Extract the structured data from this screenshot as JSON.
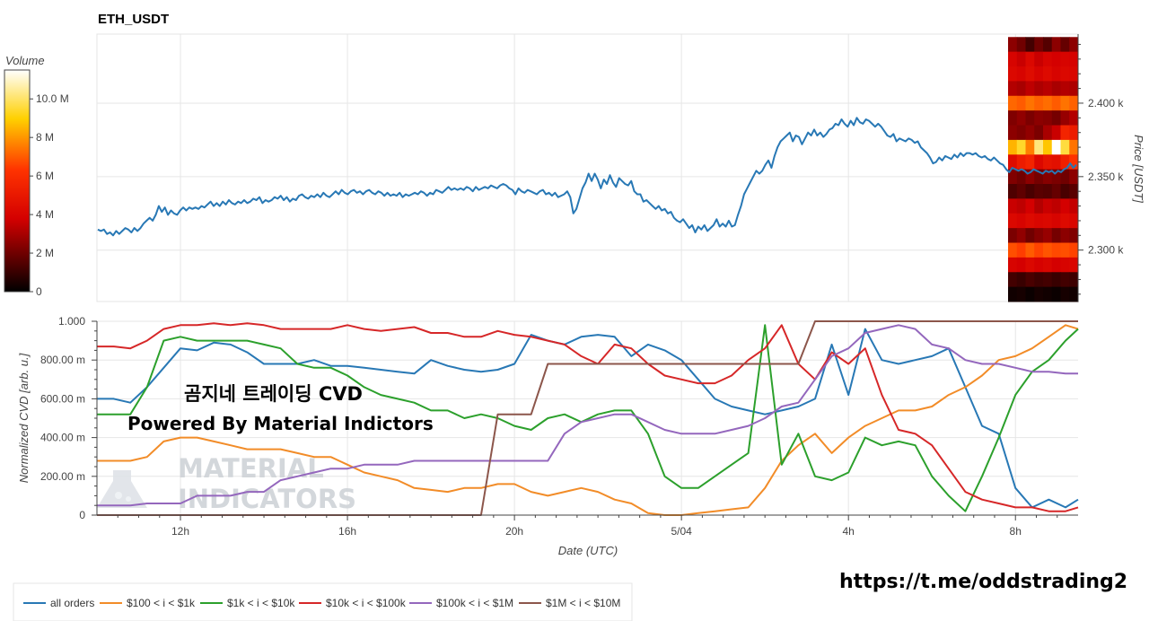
{
  "chart_data": {
    "type": "line",
    "title": "ETH_USDT",
    "price_panel": {
      "ylabel": "Price [USDT]",
      "yticks": [
        "2.300 k",
        "2.350 k",
        "2.400 k"
      ],
      "ytick_values": [
        2300,
        2350,
        2400
      ],
      "ylim": [
        2265,
        2447
      ],
      "series": {
        "name": "",
        "color": "#2878b5",
        "values": [
          2314,
          2313,
          2314,
          2311,
          2312,
          2310,
          2313,
          2311,
          2313,
          2315,
          2314,
          2312,
          2315,
          2313,
          2315,
          2318,
          2320,
          2322,
          2320,
          2324,
          2330,
          2326,
          2329,
          2324,
          2327,
          2325,
          2324,
          2327,
          2329,
          2327,
          2329,
          2328,
          2329,
          2328,
          2330,
          2329,
          2331,
          2333,
          2330,
          2332,
          2330,
          2333,
          2331,
          2334,
          2332,
          2331,
          2333,
          2332,
          2334,
          2332,
          2333,
          2335,
          2334,
          2336,
          2332,
          2334,
          2333,
          2334,
          2336,
          2335,
          2337,
          2334,
          2336,
          2333,
          2335,
          2334,
          2337,
          2338,
          2336,
          2335,
          2337,
          2336,
          2338,
          2336,
          2339,
          2337,
          2336,
          2338,
          2340,
          2338,
          2341,
          2339,
          2338,
          2340,
          2341,
          2339,
          2340,
          2338,
          2340,
          2341,
          2339,
          2338,
          2340,
          2339,
          2337,
          2339,
          2337,
          2338,
          2337,
          2339,
          2336,
          2338,
          2337,
          2338,
          2339,
          2338,
          2340,
          2339,
          2337,
          2339,
          2338,
          2341,
          2340,
          2339,
          2341,
          2343,
          2341,
          2342,
          2341,
          2342,
          2341,
          2343,
          2342,
          2340,
          2343,
          2341,
          2342,
          2343,
          2342,
          2344,
          2343,
          2342,
          2344,
          2345,
          2344,
          2342,
          2341,
          2338,
          2342,
          2340,
          2339,
          2341,
          2340,
          2339,
          2338,
          2340,
          2341,
          2338,
          2339,
          2337,
          2339,
          2336,
          2337,
          2338,
          2340,
          2336,
          2325,
          2328,
          2335,
          2342,
          2346,
          2352,
          2347,
          2352,
          2348,
          2342,
          2348,
          2345,
          2351,
          2346,
          2343,
          2349,
          2347,
          2345,
          2344,
          2347,
          2340,
          2338,
          2338,
          2333,
          2334,
          2332,
          2330,
          2328,
          2330,
          2327,
          2328,
          2325,
          2326,
          2322,
          2320,
          2319,
          2321,
          2318,
          2315,
          2317,
          2312,
          2316,
          2314,
          2317,
          2313,
          2315,
          2317,
          2321,
          2316,
          2318,
          2316,
          2320,
          2316,
          2317,
          2324,
          2330,
          2338,
          2342,
          2346,
          2350,
          2354,
          2352,
          2354,
          2358,
          2361,
          2356,
          2364,
          2370,
          2374,
          2376,
          2378,
          2380,
          2374,
          2378,
          2377,
          2372,
          2376,
          2380,
          2378,
          2382,
          2378,
          2380,
          2377,
          2379,
          2382,
          2383,
          2386,
          2385,
          2389,
          2386,
          2384,
          2388,
          2385,
          2390,
          2387,
          2386,
          2389,
          2388,
          2386,
          2384,
          2386,
          2384,
          2381,
          2378,
          2377,
          2379,
          2374,
          2376,
          2375,
          2374,
          2376,
          2375,
          2373,
          2374,
          2370,
          2368,
          2366,
          2363,
          2359,
          2360,
          2363,
          2361,
          2364,
          2363,
          2362,
          2365,
          2363,
          2366,
          2364,
          2366,
          2366,
          2365,
          2366,
          2364,
          2363,
          2364,
          2362,
          2361,
          2363,
          2361,
          2359,
          2358,
          2355,
          2353,
          2356,
          2355,
          2354,
          2355,
          2354,
          2352,
          2353,
          2355,
          2354,
          2353,
          2352,
          2354,
          2353,
          2354,
          2352,
          2354,
          2353,
          2355,
          2356,
          2359,
          2356,
          2358
        ]
      }
    },
    "volume_profile": {
      "colorbar_label": "Volume",
      "colorbar_ticks": [
        "0",
        "2 M",
        "4 M",
        "6 M",
        "8 M",
        "10.0 M"
      ],
      "colorbar_values": [
        0,
        2,
        4,
        6,
        8,
        10
      ],
      "cmax": 11.5,
      "price_bins": [
        2440,
        2430,
        2420,
        2410,
        2400,
        2390,
        2380,
        2370,
        2360,
        2350,
        2340,
        2330,
        2320,
        2310,
        2300,
        2290,
        2280,
        2270
      ],
      "columns": 8,
      "values": [
        [
          2.5,
          2.0,
          1.2,
          2.0,
          1.5,
          2.5,
          1.8,
          2.5
        ],
        [
          4.0,
          3.6,
          4.2,
          3.6,
          4.0,
          3.8,
          4.0,
          3.9
        ],
        [
          4.2,
          4.0,
          4.4,
          4.0,
          4.3,
          4.0,
          4.2,
          4.1
        ],
        [
          3.2,
          3.0,
          3.4,
          3.1,
          3.3,
          3.0,
          3.2,
          3.1
        ],
        [
          7.2,
          7.0,
          7.4,
          7.1,
          7.3,
          7.0,
          7.4,
          7.1
        ],
        [
          2.3,
          2.6,
          2.2,
          2.5,
          2.4,
          2.1,
          2.7,
          3.2
        ],
        [
          2.5,
          2.3,
          2.6,
          2.2,
          3.0,
          3.6,
          5.6,
          5.2
        ],
        [
          8.5,
          9.4,
          7.6,
          10.2,
          8.8,
          11.5,
          9.6,
          7.4
        ],
        [
          4.4,
          5.2,
          5.6,
          4.2,
          4.8,
          4.6,
          5.4,
          6.3
        ],
        [
          2.3,
          2.0,
          2.5,
          2.1,
          2.4,
          2.2,
          2.0,
          2.5
        ],
        [
          1.4,
          1.7,
          1.3,
          1.6,
          1.5,
          1.8,
          1.3,
          1.6
        ],
        [
          3.6,
          3.4,
          3.8,
          3.2,
          3.6,
          3.4,
          3.8,
          3.5
        ],
        [
          4.2,
          4.0,
          4.3,
          4.1,
          4.2,
          4.0,
          4.3,
          4.1
        ],
        [
          2.2,
          2.6,
          2.0,
          2.4,
          2.7,
          2.1,
          2.5,
          2.3
        ],
        [
          6.8,
          6.5,
          7.0,
          6.6,
          6.9,
          6.7,
          6.8,
          6.6
        ],
        [
          4.0,
          3.8,
          4.2,
          3.9,
          4.1,
          3.8,
          4.0,
          4.1
        ],
        [
          1.2,
          1.0,
          1.3,
          1.1,
          1.2,
          1.0,
          1.2,
          1.1
        ],
        [
          0.3,
          0.4,
          0.2,
          0.4,
          0.3,
          0.2,
          0.4,
          0.3
        ]
      ]
    },
    "cvd_panel": {
      "ylabel": "Normalized CVD [arb. u.]",
      "xlabel": "Date (UTC)",
      "yticks": [
        "0",
        "200.00 m",
        "400.00 m",
        "600.00 m",
        "800.00 m",
        "1.000"
      ],
      "ytick_values": [
        0,
        0.2,
        0.4,
        0.6,
        0.8,
        1.0
      ],
      "ylim": [
        0,
        1
      ],
      "xticks": [
        "12h",
        "16h",
        "20h",
        "5/04",
        "4h",
        "8h"
      ],
      "xtick_positions": [
        10,
        30,
        50,
        70,
        90,
        110
      ],
      "x": [
        0,
        2,
        4,
        6,
        8,
        10,
        12,
        14,
        16,
        18,
        20,
        22,
        24,
        26,
        28,
        30,
        32,
        34,
        36,
        38,
        40,
        42,
        44,
        46,
        48,
        50,
        52,
        54,
        56,
        58,
        60,
        62,
        64,
        66,
        68,
        70,
        72,
        74,
        76,
        78,
        80,
        82,
        84,
        86,
        88,
        90,
        92,
        94,
        96,
        98,
        100,
        102,
        104,
        106,
        108,
        110,
        112,
        114,
        116,
        117.5
      ],
      "xlim": [
        0,
        117.5
      ],
      "series": [
        {
          "name": "all orders",
          "color": "#2878b5",
          "values": [
            0.6,
            0.6,
            0.58,
            0.66,
            0.76,
            0.86,
            0.85,
            0.89,
            0.88,
            0.84,
            0.78,
            0.78,
            0.78,
            0.8,
            0.77,
            0.77,
            0.76,
            0.75,
            0.74,
            0.73,
            0.8,
            0.77,
            0.75,
            0.74,
            0.75,
            0.78,
            0.93,
            0.9,
            0.88,
            0.92,
            0.93,
            0.92,
            0.82,
            0.88,
            0.85,
            0.8,
            0.7,
            0.6,
            0.56,
            0.54,
            0.52,
            0.54,
            0.56,
            0.6,
            0.88,
            0.62,
            0.96,
            0.8,
            0.78,
            0.8,
            0.82,
            0.86,
            0.66,
            0.46,
            0.42,
            0.14,
            0.04,
            0.08,
            0.04,
            0.08
          ]
        },
        {
          "name": "$100 < i < $1k",
          "color": "#f28c28",
          "values": [
            0.28,
            0.28,
            0.28,
            0.3,
            0.38,
            0.4,
            0.4,
            0.38,
            0.36,
            0.34,
            0.34,
            0.34,
            0.32,
            0.3,
            0.3,
            0.26,
            0.22,
            0.2,
            0.18,
            0.14,
            0.13,
            0.12,
            0.14,
            0.14,
            0.16,
            0.16,
            0.12,
            0.1,
            0.12,
            0.14,
            0.12,
            0.08,
            0.06,
            0.01,
            0.0,
            0.0,
            0.01,
            0.02,
            0.03,
            0.04,
            0.14,
            0.28,
            0.36,
            0.42,
            0.32,
            0.4,
            0.46,
            0.5,
            0.54,
            0.54,
            0.56,
            0.62,
            0.66,
            0.72,
            0.8,
            0.82,
            0.86,
            0.92,
            0.98,
            0.96
          ]
        },
        {
          "name": "$1k < i < $10k",
          "color": "#2ca02c",
          "values": [
            0.52,
            0.52,
            0.52,
            0.66,
            0.9,
            0.92,
            0.9,
            0.9,
            0.9,
            0.9,
            0.88,
            0.86,
            0.78,
            0.76,
            0.76,
            0.72,
            0.66,
            0.62,
            0.6,
            0.58,
            0.54,
            0.54,
            0.5,
            0.52,
            0.5,
            0.46,
            0.44,
            0.5,
            0.52,
            0.48,
            0.52,
            0.54,
            0.54,
            0.42,
            0.2,
            0.14,
            0.14,
            0.2,
            0.26,
            0.32,
            0.98,
            0.26,
            0.42,
            0.2,
            0.18,
            0.22,
            0.4,
            0.36,
            0.38,
            0.36,
            0.2,
            0.1,
            0.02,
            0.2,
            0.4,
            0.62,
            0.74,
            0.8,
            0.9,
            0.96
          ]
        },
        {
          "name": "$10k < i < $100k",
          "color": "#d62728",
          "values": [
            0.87,
            0.87,
            0.86,
            0.9,
            0.96,
            0.98,
            0.98,
            0.99,
            0.98,
            0.99,
            0.98,
            0.96,
            0.96,
            0.96,
            0.96,
            0.98,
            0.96,
            0.95,
            0.96,
            0.97,
            0.94,
            0.94,
            0.92,
            0.92,
            0.95,
            0.93,
            0.92,
            0.9,
            0.88,
            0.82,
            0.78,
            0.88,
            0.86,
            0.78,
            0.72,
            0.7,
            0.68,
            0.68,
            0.72,
            0.8,
            0.86,
            0.98,
            0.78,
            0.7,
            0.84,
            0.78,
            0.86,
            0.62,
            0.44,
            0.42,
            0.36,
            0.24,
            0.12,
            0.08,
            0.06,
            0.04,
            0.04,
            0.02,
            0.02,
            0.04
          ]
        },
        {
          "name": "$100k < i < $1M",
          "color": "#9467bd",
          "values": [
            0.05,
            0.05,
            0.05,
            0.06,
            0.06,
            0.06,
            0.1,
            0.1,
            0.1,
            0.12,
            0.12,
            0.18,
            0.2,
            0.22,
            0.24,
            0.24,
            0.26,
            0.26,
            0.26,
            0.28,
            0.28,
            0.28,
            0.28,
            0.28,
            0.28,
            0.28,
            0.28,
            0.28,
            0.42,
            0.48,
            0.5,
            0.52,
            0.52,
            0.48,
            0.44,
            0.42,
            0.42,
            0.42,
            0.44,
            0.46,
            0.5,
            0.56,
            0.58,
            0.7,
            0.82,
            0.86,
            0.94,
            0.96,
            0.98,
            0.96,
            0.88,
            0.86,
            0.8,
            0.78,
            0.78,
            0.76,
            0.74,
            0.74,
            0.73,
            0.73
          ]
        },
        {
          "name": "$1M < i < $10M",
          "color": "#8c564b",
          "values": [
            0,
            0,
            0,
            0,
            0,
            0,
            0,
            0,
            0,
            0,
            0,
            0,
            0,
            0,
            0,
            0,
            0,
            0,
            0,
            0,
            0,
            0,
            0,
            0,
            0.52,
            0.52,
            0.52,
            0.78,
            0.78,
            0.78,
            0.78,
            0.78,
            0.78,
            0.78,
            0.78,
            0.78,
            0.78,
            0.78,
            0.78,
            0.78,
            0.78,
            0.78,
            0.78,
            1,
            1,
            1,
            1,
            1,
            1,
            1,
            1,
            1,
            1,
            1,
            1,
            1,
            1,
            1,
            1,
            1
          ]
        }
      ]
    },
    "legend_position": "bottom-left"
  },
  "overlay": {
    "line1": "곰지네 트레이딩 CVD",
    "line2": "Powered By Material Indictors",
    "watermark_line1": "MATERIAL",
    "watermark_line2": "INDICATORS",
    "url": "https://t.me/oddstrading2"
  },
  "colors": {
    "background": "#ffffff",
    "grid": "#e6e6e6",
    "axis": "#444444"
  }
}
